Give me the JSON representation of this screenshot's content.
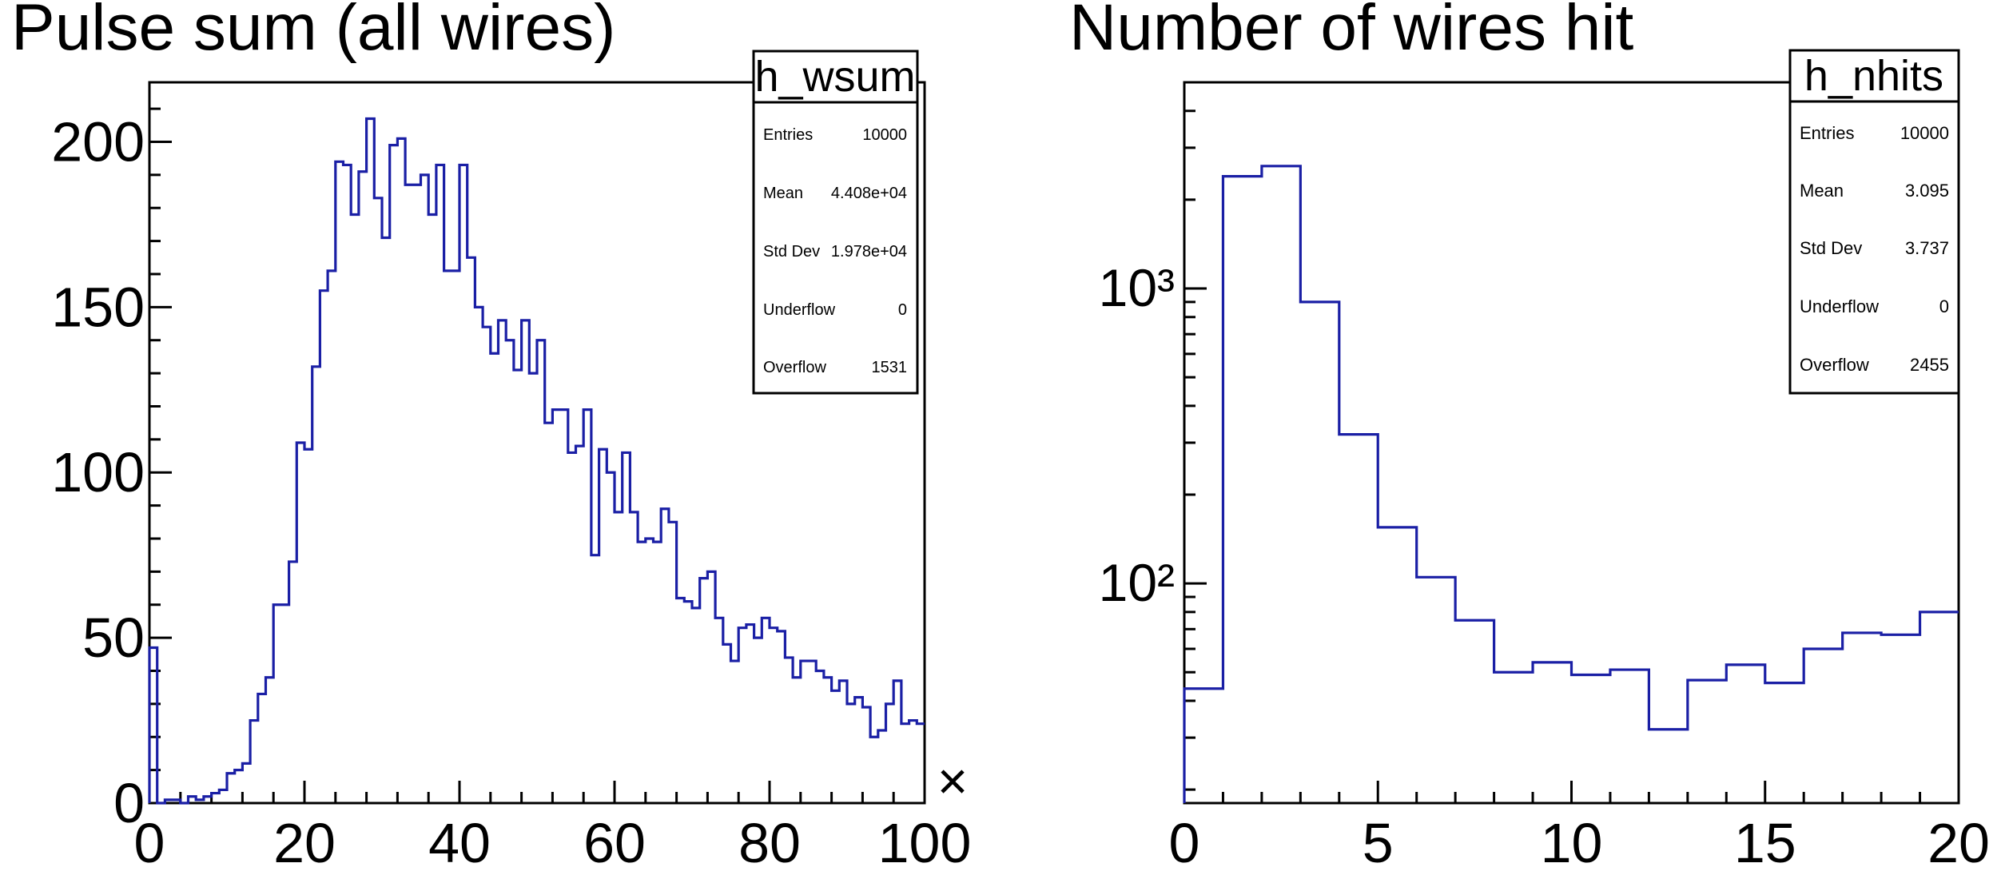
{
  "line_color": "#1a1fa5",
  "chart_data": [
    {
      "type": "histogram",
      "title": "Pulse sum (all wires)",
      "xlim": [
        0,
        100
      ],
      "ylim": [
        0,
        218
      ],
      "log_y": false,
      "bin_width": 1,
      "x_ticks": [
        0,
        20,
        40,
        60,
        80,
        100
      ],
      "x_tick_labels": [
        "0",
        "20",
        "40",
        "60",
        "80",
        "100"
      ],
      "y_ticks": [
        0,
        50,
        100,
        150,
        200
      ],
      "y_tick_labels": [
        "0",
        "50",
        "100",
        "150",
        "200"
      ],
      "x_multiplier_label": "×",
      "values": [
        47,
        0,
        1,
        1,
        0,
        2,
        1,
        2,
        3,
        4,
        9,
        10,
        12,
        25,
        33,
        38,
        60,
        60,
        73,
        109,
        107,
        132,
        155,
        161,
        194,
        193,
        178,
        191,
        207,
        183,
        171,
        199,
        201,
        187,
        187,
        190,
        178,
        193,
        161,
        161,
        193,
        165,
        150,
        144,
        136,
        146,
        140,
        131,
        146,
        130,
        140,
        115,
        119,
        119,
        106,
        108,
        119,
        75,
        107,
        100,
        88,
        106,
        88,
        79,
        80,
        79,
        89,
        85,
        62,
        61,
        59,
        68,
        70,
        56,
        48,
        43,
        53,
        54,
        50,
        56,
        53,
        52,
        44,
        38,
        43,
        43,
        40,
        38,
        34,
        37,
        30,
        32,
        29,
        20,
        22,
        30,
        37,
        24,
        25,
        24,
        25,
        24,
        26,
        23,
        18,
        16,
        18,
        21,
        18
      ]
    },
    {
      "type": "histogram",
      "title": "Number of wires hit",
      "xlim": [
        0,
        20
      ],
      "ylim": [
        18,
        5000
      ],
      "log_y": true,
      "bin_width": 1,
      "x_ticks": [
        0,
        5,
        10,
        15,
        20
      ],
      "x_tick_labels": [
        "0",
        "5",
        "10",
        "15",
        "20"
      ],
      "y_ticks": [
        100,
        1000
      ],
      "y_tick_labels": [
        "10²",
        "10³"
      ],
      "values": [
        44,
        2400,
        2600,
        900,
        320,
        155,
        105,
        75,
        50,
        54,
        49,
        51,
        32,
        47,
        53,
        46,
        60,
        68,
        67,
        80
      ]
    }
  ],
  "stats_boxes": [
    {
      "name": "h_wsum",
      "rows": [
        {
          "label": "Entries",
          "value": "10000"
        },
        {
          "label": "Mean",
          "value": "4.408e+04"
        },
        {
          "label": "Std Dev",
          "value": "1.978e+04"
        },
        {
          "label": "Underflow",
          "value": "0"
        },
        {
          "label": "Overflow",
          "value": "1531"
        }
      ]
    },
    {
      "name": "h_nhits",
      "rows": [
        {
          "label": "Entries",
          "value": "10000"
        },
        {
          "label": "Mean",
          "value": "3.095"
        },
        {
          "label": "Std Dev",
          "value": "3.737"
        },
        {
          "label": "Underflow",
          "value": "0"
        },
        {
          "label": "Overflow",
          "value": "2455"
        }
      ]
    }
  ]
}
